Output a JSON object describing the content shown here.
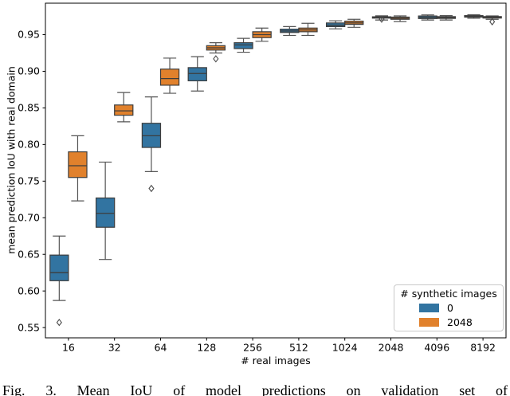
{
  "caption": "Fig. 3. Mean IoU of model predictions on validation set of",
  "chart_data": {
    "type": "boxplot",
    "title": "",
    "xlabel": "# real images",
    "ylabel": "mean prediction IoU with real domain",
    "categories": [
      "16",
      "32",
      "64",
      "128",
      "256",
      "512",
      "1024",
      "2048",
      "4096",
      "8192"
    ],
    "y_ticks": [
      0.55,
      0.6,
      0.65,
      0.7,
      0.75,
      0.8,
      0.85,
      0.9,
      0.95
    ],
    "ylim": [
      0.536,
      0.993
    ],
    "grid": false,
    "legend": {
      "title": "# synthetic images",
      "position": "lower right",
      "entries": [
        {
          "label": "0",
          "color": "#3274a1"
        },
        {
          "label": "2048",
          "color": "#e1812c"
        }
      ]
    },
    "series": [
      {
        "name": "0",
        "color": "#3274a1",
        "boxes": [
          {
            "whislo": 0.587,
            "q1": 0.614,
            "med": 0.625,
            "q3": 0.649,
            "whishi": 0.675,
            "fliers": [
              0.557
            ]
          },
          {
            "whislo": 0.643,
            "q1": 0.687,
            "med": 0.706,
            "q3": 0.727,
            "whishi": 0.776,
            "fliers": []
          },
          {
            "whislo": 0.763,
            "q1": 0.796,
            "med": 0.812,
            "q3": 0.829,
            "whishi": 0.865,
            "fliers": [
              0.74
            ]
          },
          {
            "whislo": 0.873,
            "q1": 0.887,
            "med": 0.897,
            "q3": 0.905,
            "whishi": 0.92,
            "fliers": []
          },
          {
            "whislo": 0.926,
            "q1": 0.931,
            "med": 0.936,
            "q3": 0.939,
            "whishi": 0.945,
            "fliers": []
          },
          {
            "whislo": 0.949,
            "q1": 0.953,
            "med": 0.955,
            "q3": 0.9575,
            "whishi": 0.961,
            "fliers": []
          },
          {
            "whislo": 0.958,
            "q1": 0.961,
            "med": 0.963,
            "q3": 0.966,
            "whishi": 0.969,
            "fliers": []
          },
          {
            "whislo": 0.97,
            "q1": 0.9726,
            "med": 0.9735,
            "q3": 0.9744,
            "whishi": 0.9757,
            "fliers": [
              0.9712
            ]
          },
          {
            "whislo": 0.97,
            "q1": 0.972,
            "med": 0.9737,
            "q3": 0.9755,
            "whishi": 0.977,
            "fliers": []
          },
          {
            "whislo": 0.9725,
            "q1": 0.974,
            "med": 0.975,
            "q3": 0.976,
            "whishi": 0.9772,
            "fliers": []
          }
        ]
      },
      {
        "name": "2048",
        "color": "#e1812c",
        "boxes": [
          {
            "whislo": 0.723,
            "q1": 0.755,
            "med": 0.771,
            "q3": 0.79,
            "whishi": 0.812,
            "fliers": []
          },
          {
            "whislo": 0.831,
            "q1": 0.84,
            "med": 0.846,
            "q3": 0.854,
            "whishi": 0.871,
            "fliers": []
          },
          {
            "whislo": 0.87,
            "q1": 0.881,
            "med": 0.89,
            "q3": 0.903,
            "whishi": 0.918,
            "fliers": []
          },
          {
            "whislo": 0.925,
            "q1": 0.929,
            "med": 0.932,
            "q3": 0.935,
            "whishi": 0.939,
            "fliers": [
              0.917
            ]
          },
          {
            "whislo": 0.941,
            "q1": 0.946,
            "med": 0.95,
            "q3": 0.954,
            "whishi": 0.959,
            "fliers": []
          },
          {
            "whislo": 0.949,
            "q1": 0.954,
            "med": 0.9565,
            "q3": 0.959,
            "whishi": 0.9655,
            "fliers": []
          },
          {
            "whislo": 0.96,
            "q1": 0.964,
            "med": 0.966,
            "q3": 0.9685,
            "whishi": 0.971,
            "fliers": []
          },
          {
            "whislo": 0.968,
            "q1": 0.971,
            "med": 0.9725,
            "q3": 0.974,
            "whishi": 0.9756,
            "fliers": []
          },
          {
            "whislo": 0.97,
            "q1": 0.9722,
            "med": 0.9734,
            "q3": 0.9746,
            "whishi": 0.976,
            "fliers": []
          },
          {
            "whislo": 0.971,
            "q1": 0.9727,
            "med": 0.9737,
            "q3": 0.9747,
            "whishi": 0.9756,
            "fliers": [
              0.9677
            ]
          }
        ]
      }
    ]
  }
}
